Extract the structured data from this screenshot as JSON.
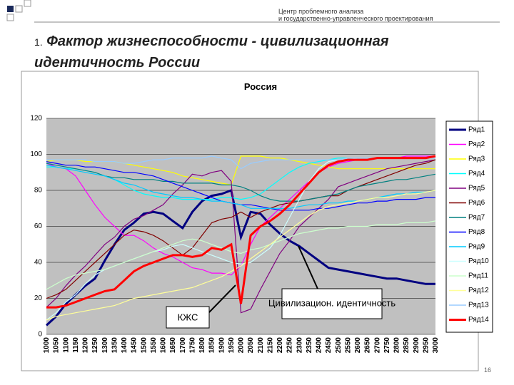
{
  "header": {
    "line1": "Центр проблемного анализа",
    "line2": "и государственно-управленческого проектирования"
  },
  "slide_number_prefix": "1.",
  "slide_title": "Фактор жизнеспособности - цивилизационная идентичность России",
  "page_number": "16",
  "chart_data": {
    "type": "line",
    "title": "Россия",
    "categories": [
      "1000",
      "1050",
      "1100",
      "1150",
      "1200",
      "1250",
      "1300",
      "1350",
      "1400",
      "1450",
      "1500",
      "1550",
      "1600",
      "1650",
      "1700",
      "1750",
      "1800",
      "1850",
      "1900",
      "1950",
      "2000",
      "2050",
      "2100",
      "2150",
      "2200",
      "2250",
      "2300",
      "2350",
      "2400",
      "2450",
      "2500",
      "2550",
      "2600",
      "2650",
      "2700",
      "2750",
      "2800",
      "2850",
      "2900",
      "2950",
      "3000"
    ],
    "ylim": [
      0,
      120
    ],
    "yticks": [
      0,
      20,
      40,
      60,
      80,
      100,
      120
    ],
    "grid": true,
    "legend": "right",
    "annotations": [
      "КЖС",
      "Цивилизацион. идентичность"
    ],
    "series": [
      {
        "name": "Ряд1",
        "color": "#000080",
        "values": [
          5,
          10,
          17,
          22,
          27,
          31,
          41,
          50,
          58,
          62,
          67,
          68,
          67,
          63,
          59,
          68,
          74,
          77,
          78,
          80,
          54,
          68,
          67,
          61,
          56,
          52,
          49,
          45,
          41,
          37,
          36,
          35,
          34,
          33,
          32,
          31,
          31,
          30,
          29,
          28,
          28
        ]
      },
      {
        "name": "Ряд2",
        "color": "#ff00ff",
        "values": [
          95,
          93,
          92,
          88,
          80,
          72,
          65,
          60,
          55,
          55,
          52,
          48,
          45,
          43,
          40,
          37,
          36,
          34,
          34,
          33,
          38,
          50,
          60,
          65,
          70,
          75,
          80,
          85,
          90,
          93,
          95,
          96,
          97,
          97,
          98,
          98,
          98,
          99,
          99,
          99,
          99
        ]
      },
      {
        "name": "Ряд3",
        "color": "#ffff00",
        "values": [
          96,
          97,
          97,
          97,
          96,
          96,
          96,
          96,
          95,
          94,
          93,
          92,
          91,
          90,
          88,
          87,
          86,
          85,
          84,
          83,
          99,
          99,
          99,
          98,
          98,
          97,
          96,
          95,
          94,
          93,
          92,
          92,
          92,
          92,
          92,
          92,
          92,
          92,
          92,
          92,
          92
        ]
      },
      {
        "name": "Ряд4",
        "color": "#00ffff",
        "values": [
          93,
          93,
          92,
          92,
          91,
          90,
          88,
          86,
          83,
          80,
          78,
          77,
          76,
          76,
          75,
          75,
          75,
          75,
          76,
          76,
          75,
          76,
          78,
          82,
          86,
          90,
          93,
          95,
          96,
          97,
          98,
          98,
          98,
          98,
          98,
          98,
          98,
          98,
          98,
          98,
          98
        ]
      },
      {
        "name": "Ряд5",
        "color": "#800080",
        "values": [
          15,
          20,
          27,
          33,
          38,
          44,
          50,
          54,
          60,
          64,
          66,
          69,
          72,
          78,
          83,
          89,
          88,
          90,
          91,
          85,
          12,
          14,
          25,
          35,
          45,
          52,
          60,
          65,
          70,
          75,
          82,
          84,
          86,
          88,
          90,
          92,
          93,
          94,
          95,
          96,
          97
        ]
      },
      {
        "name": "Ряд6",
        "color": "#800000",
        "values": [
          20,
          22,
          25,
          30,
          35,
          40,
          45,
          50,
          55,
          58,
          57,
          55,
          52,
          48,
          44,
          48,
          55,
          62,
          64,
          65,
          68,
          65,
          68,
          70,
          72,
          73,
          74,
          75,
          76,
          77,
          77,
          80,
          82,
          84,
          86,
          88,
          90,
          92,
          94,
          95,
          97
        ]
      },
      {
        "name": "Ряд7",
        "color": "#008080",
        "values": [
          95,
          94,
          93,
          92,
          91,
          90,
          88,
          87,
          87,
          86,
          86,
          86,
          85,
          85,
          84,
          84,
          84,
          84,
          83,
          83,
          82,
          80,
          77,
          75,
          74,
          74,
          74,
          75,
          76,
          77,
          78,
          80,
          82,
          83,
          84,
          85,
          86,
          86,
          87,
          88,
          89
        ]
      },
      {
        "name": "Ряд8",
        "color": "#0000ff",
        "values": [
          96,
          95,
          94,
          94,
          93,
          93,
          92,
          91,
          90,
          90,
          89,
          88,
          86,
          84,
          82,
          80,
          78,
          76,
          74,
          73,
          72,
          72,
          71,
          70,
          69,
          69,
          69,
          69,
          70,
          70,
          71,
          72,
          73,
          73,
          74,
          74,
          75,
          75,
          75,
          76,
          76
        ]
      },
      {
        "name": "Ряд9",
        "color": "#00ccff",
        "values": [
          94,
          93,
          92,
          91,
          90,
          89,
          88,
          86,
          84,
          83,
          81,
          79,
          78,
          77,
          76,
          76,
          75,
          74,
          74,
          73,
          72,
          70,
          70,
          70,
          70,
          70,
          71,
          72,
          72,
          73,
          73,
          74,
          74,
          75,
          76,
          77,
          78,
          78,
          79,
          79,
          80
        ]
      },
      {
        "name": "Ряд10",
        "color": "#ccffff",
        "values": [
          8,
          12,
          18,
          22,
          28,
          33,
          36,
          38,
          40,
          42,
          44,
          46,
          47,
          49,
          50,
          48,
          46,
          44,
          42,
          40,
          39,
          40,
          44,
          48,
          55,
          65,
          75,
          85,
          92,
          96,
          97,
          97,
          98,
          98,
          98,
          98,
          98,
          98,
          98,
          98,
          98
        ]
      },
      {
        "name": "Ряд11",
        "color": "#ccffcc",
        "values": [
          25,
          28,
          31,
          33,
          34,
          35,
          36,
          38,
          40,
          42,
          44,
          46,
          48,
          50,
          52,
          53,
          52,
          50,
          48,
          46,
          45,
          47,
          48,
          50,
          52,
          54,
          56,
          57,
          58,
          59,
          59,
          60,
          60,
          60,
          61,
          61,
          61,
          62,
          62,
          62,
          63
        ]
      },
      {
        "name": "Ряд12",
        "color": "#ffff99",
        "values": [
          8,
          10,
          11,
          12,
          13,
          14,
          15,
          16,
          18,
          20,
          21,
          22,
          23,
          24,
          25,
          26,
          28,
          30,
          32,
          35,
          38,
          42,
          46,
          50,
          54,
          58,
          62,
          66,
          69,
          71,
          72,
          73,
          74,
          75,
          76,
          76,
          77,
          78,
          78,
          79,
          80
        ]
      },
      {
        "name": "Ряд13",
        "color": "#99ccff",
        "values": [
          97,
          97,
          97,
          97,
          97,
          96,
          96,
          96,
          95,
          95,
          96,
          97,
          97,
          98,
          98,
          98,
          98,
          99,
          98,
          97,
          92,
          95,
          96,
          97,
          97,
          97,
          97,
          97,
          97,
          97,
          97,
          98,
          98,
          98,
          98,
          98,
          98,
          98,
          98,
          98,
          98
        ]
      },
      {
        "name": "Ряд14",
        "color": "#ff0000",
        "values": [
          15,
          15,
          16,
          18,
          20,
          22,
          24,
          25,
          30,
          35,
          38,
          40,
          42,
          44,
          44,
          43,
          44,
          48,
          47,
          50,
          17,
          55,
          60,
          63,
          67,
          72,
          78,
          84,
          90,
          94,
          96,
          97,
          97,
          97,
          98,
          98,
          98,
          98,
          98,
          98,
          99
        ]
      }
    ]
  }
}
